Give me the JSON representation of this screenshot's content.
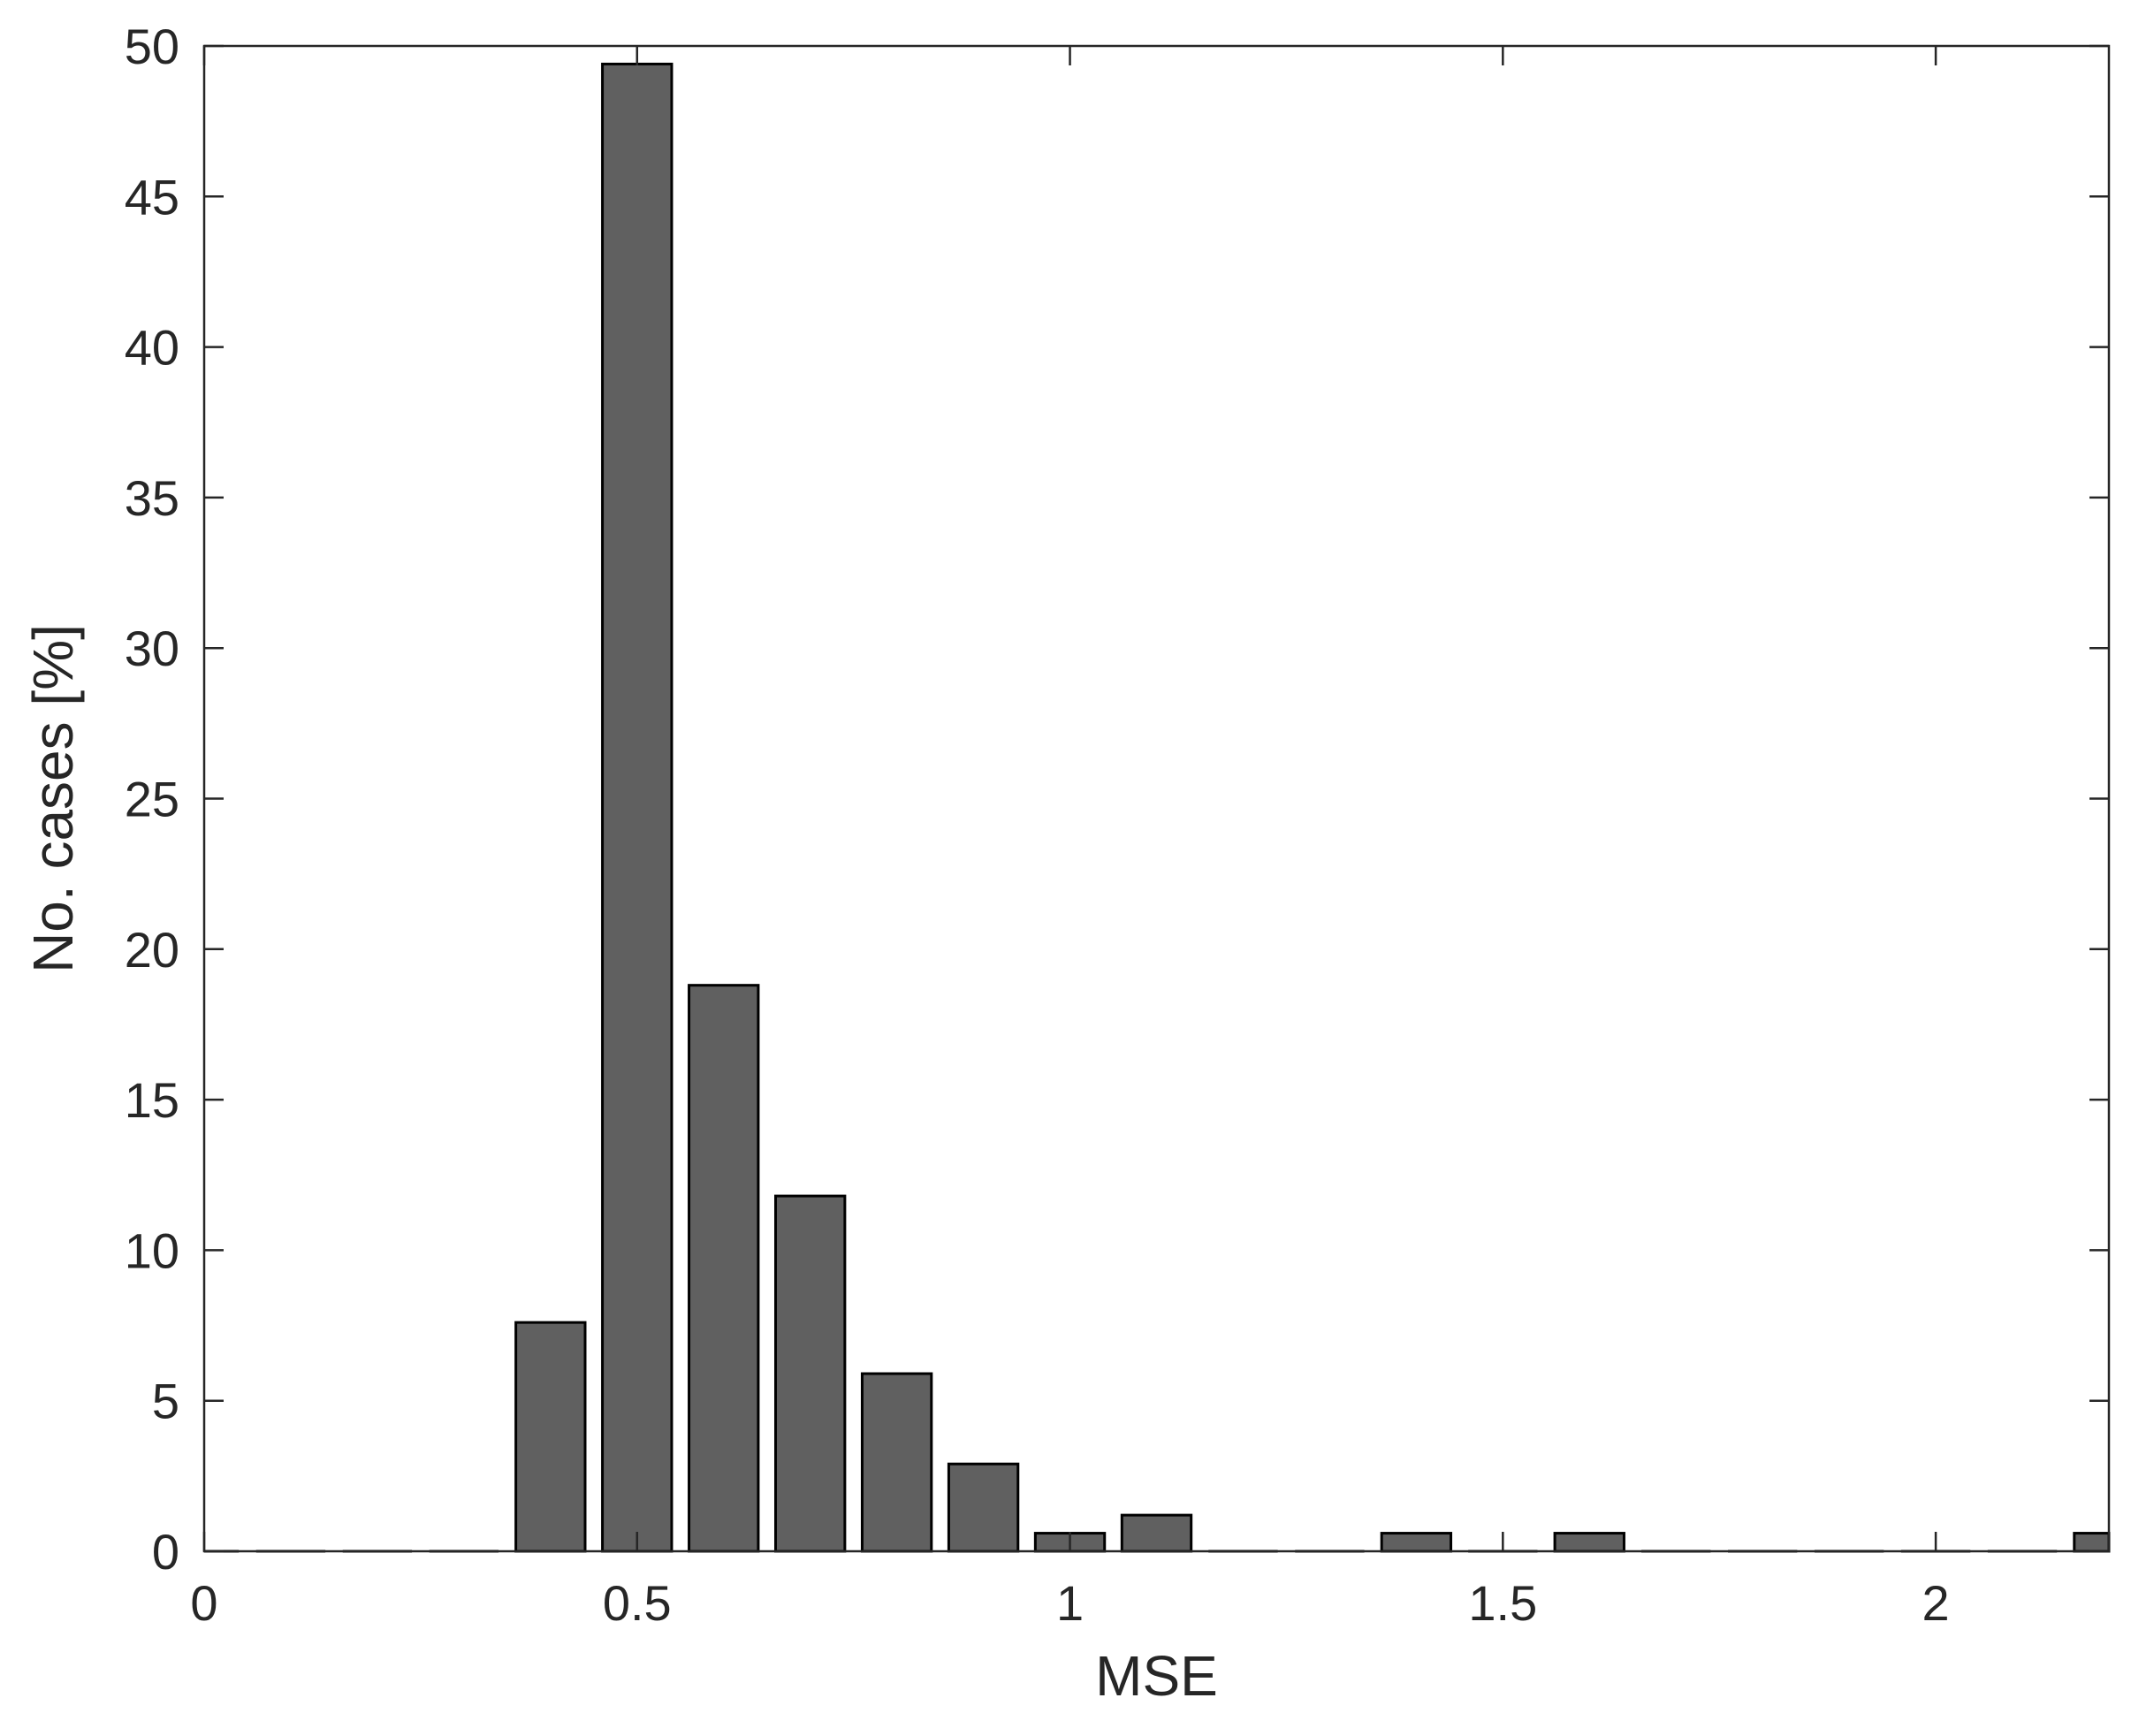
{
  "chart_data": {
    "type": "bar",
    "title": "",
    "xlabel": "MSE",
    "ylabel": "No. cases [%]",
    "xlim": [
      0,
      2.2
    ],
    "ylim": [
      0,
      50
    ],
    "xticks": [
      0,
      0.5,
      1,
      1.5,
      2
    ],
    "xtick_labels": [
      "0",
      "0.5",
      "1",
      "1.5",
      "2"
    ],
    "yticks": [
      0,
      5,
      10,
      15,
      20,
      25,
      30,
      35,
      40,
      45,
      50
    ],
    "ytick_labels": [
      "0",
      "5",
      "10",
      "15",
      "20",
      "25",
      "30",
      "35",
      "40",
      "45",
      "50"
    ],
    "bin_width": 0.1,
    "bar_fill": "#606060",
    "bar_edge": "#000000",
    "grid": false,
    "bars": [
      {
        "x": 0.0,
        "value": 0
      },
      {
        "x": 0.1,
        "value": 0
      },
      {
        "x": 0.2,
        "value": 0
      },
      {
        "x": 0.3,
        "value": 0
      },
      {
        "x": 0.4,
        "value": 7.6
      },
      {
        "x": 0.5,
        "value": 49.4
      },
      {
        "x": 0.6,
        "value": 18.8
      },
      {
        "x": 0.7,
        "value": 11.8
      },
      {
        "x": 0.8,
        "value": 5.9
      },
      {
        "x": 0.9,
        "value": 2.9
      },
      {
        "x": 1.0,
        "value": 0.6
      },
      {
        "x": 1.1,
        "value": 1.2
      },
      {
        "x": 1.2,
        "value": 0
      },
      {
        "x": 1.3,
        "value": 0
      },
      {
        "x": 1.4,
        "value": 0.6
      },
      {
        "x": 1.5,
        "value": 0
      },
      {
        "x": 1.6,
        "value": 0.6
      },
      {
        "x": 1.7,
        "value": 0
      },
      {
        "x": 1.8,
        "value": 0
      },
      {
        "x": 1.9,
        "value": 0
      },
      {
        "x": 2.0,
        "value": 0
      },
      {
        "x": 2.1,
        "value": 0
      },
      {
        "x": 2.2,
        "value": 0.6
      }
    ]
  }
}
